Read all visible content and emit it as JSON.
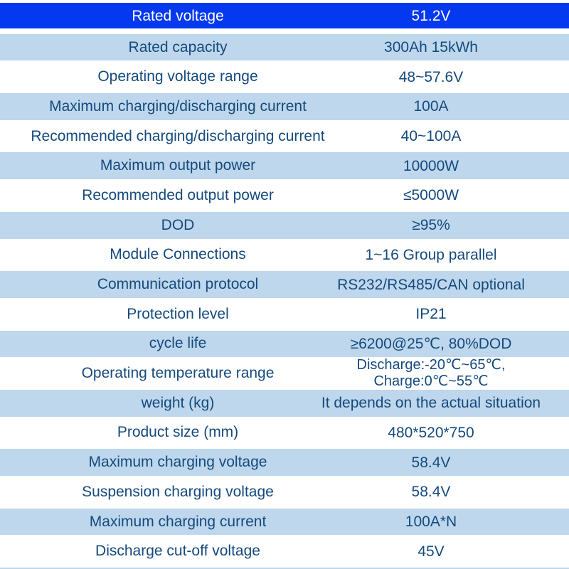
{
  "table": {
    "rows": [
      {
        "label": "Rated voltage",
        "value": "51.2V",
        "type": "header"
      },
      {
        "label": "Rated capacity",
        "value": "300Ah 15kWh",
        "type": "striped"
      },
      {
        "label": "Operating voltage range",
        "value": "48~57.6V",
        "type": "plain"
      },
      {
        "label": "Maximum charging/discharging current",
        "value": "100A",
        "type": "striped"
      },
      {
        "label": "Recommended charging/discharging current",
        "value": "40~100A",
        "type": "plain"
      },
      {
        "label": "Maximum output power",
        "value": "10000W",
        "type": "striped"
      },
      {
        "label": "Recommended output power",
        "value": "≤5000W",
        "type": "plain"
      },
      {
        "label": "DOD",
        "value": "≥95%",
        "type": "striped"
      },
      {
        "label": "Module Connections",
        "value": "1~16 Group parallel",
        "type": "plain"
      },
      {
        "label": "Communication protocol",
        "value": "RS232/RS485/CAN optional",
        "type": "striped"
      },
      {
        "label": "Protection level",
        "value": "IP21",
        "type": "plain"
      },
      {
        "label": "cycle life",
        "value": "≥6200@25℃,  80%DOD",
        "type": "striped"
      },
      {
        "label": "Operating temperature range",
        "value": "Discharge:-20℃~65℃,",
        "value_line2": "Charge:0℃~55℃",
        "type": "plain"
      },
      {
        "label": "weight (kg)",
        "value": "It depends on the actual situation",
        "type": "striped"
      },
      {
        "label": "Product size (mm)",
        "value": "480*520*750",
        "type": "plain"
      },
      {
        "label": "Maximum charging voltage",
        "value": "58.4V",
        "type": "striped"
      },
      {
        "label": "Suspension charging voltage",
        "value": "58.4V",
        "type": "plain"
      },
      {
        "label": "Maximum charging current",
        "value": "100A*N",
        "type": "striped"
      },
      {
        "label": "Discharge cut-off voltage",
        "value": "45V",
        "type": "plain"
      }
    ]
  },
  "colors": {
    "header_bg": "#0439f0",
    "stripe_bg": "#bed7ec",
    "text": "#154a7e",
    "header_text": "#ffffff",
    "background": "#ffffff"
  }
}
